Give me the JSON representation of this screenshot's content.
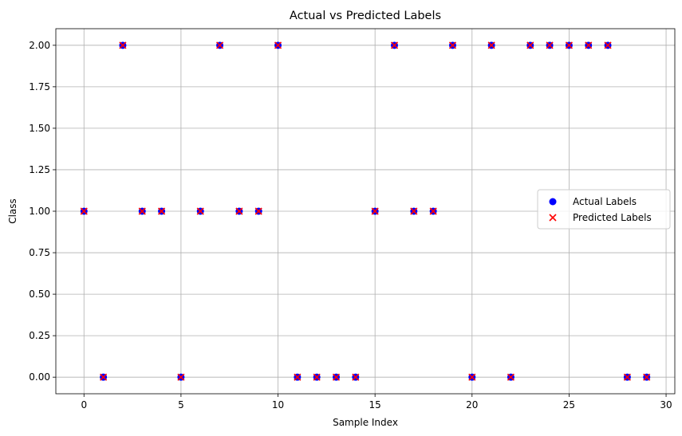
{
  "chart_data": {
    "type": "scatter",
    "title": "Actual vs Predicted Labels",
    "xlabel": "Sample Index",
    "ylabel": "Class",
    "xlim": [
      -1.45,
      30.45
    ],
    "ylim": [
      -0.1,
      2.1
    ],
    "xticks": [
      0,
      5,
      10,
      15,
      20,
      25,
      30
    ],
    "xtick_labels": [
      "0",
      "5",
      "10",
      "15",
      "20",
      "25",
      "30"
    ],
    "yticks": [
      0,
      0.25,
      0.5,
      0.75,
      1,
      1.25,
      1.5,
      1.75,
      2
    ],
    "ytick_labels": [
      "0.00",
      "0.25",
      "0.50",
      "0.75",
      "1.00",
      "1.25",
      "1.50",
      "1.75",
      "2.00"
    ],
    "grid": true,
    "legend_position": "center-right",
    "x": [
      0,
      1,
      2,
      3,
      4,
      5,
      6,
      7,
      8,
      9,
      10,
      11,
      12,
      13,
      14,
      15,
      16,
      17,
      18,
      19,
      20,
      21,
      22,
      23,
      24,
      25,
      26,
      27,
      28,
      29
    ],
    "series": [
      {
        "name": "Actual Labels",
        "marker": "circle",
        "color": "#0000ff",
        "values": [
          1,
          0,
          2,
          1,
          1,
          0,
          1,
          2,
          1,
          1,
          2,
          0,
          0,
          0,
          0,
          1,
          2,
          1,
          1,
          2,
          0,
          2,
          0,
          2,
          2,
          2,
          2,
          2,
          0,
          0
        ]
      },
      {
        "name": "Predicted Labels",
        "marker": "x",
        "color": "#ff0000",
        "values": [
          1,
          0,
          2,
          1,
          1,
          0,
          1,
          2,
          1,
          1,
          2,
          0,
          0,
          0,
          0,
          1,
          2,
          1,
          1,
          2,
          0,
          2,
          0,
          2,
          2,
          2,
          2,
          2,
          0,
          0
        ]
      }
    ]
  }
}
